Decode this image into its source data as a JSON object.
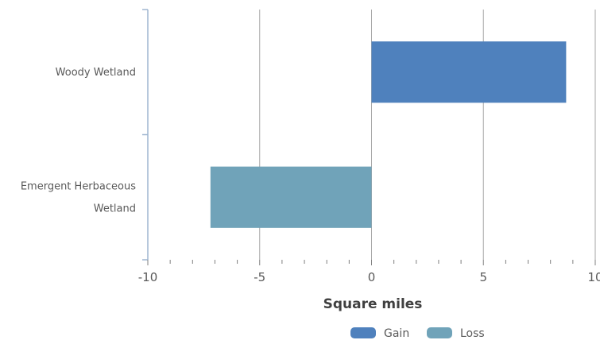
{
  "chart_data": {
    "type": "bar",
    "orientation": "horizontal",
    "categories": [
      "Woody Wetland",
      "Emergent Herbaceous Wetland"
    ],
    "category_label_lines": [
      [
        "Woody Wetland"
      ],
      [
        "Emergent Herbaceous",
        "Wetland"
      ]
    ],
    "series": [
      {
        "name": "Gain",
        "color": "#4f81bd",
        "values": [
          8.7,
          null
        ]
      },
      {
        "name": "Loss",
        "color": "#70a3b9",
        "values": [
          null,
          -7.2
        ]
      }
    ],
    "xlabel": "Square miles",
    "ylabel": "",
    "xlim": [
      -10,
      10
    ],
    "xticks": [
      -10,
      -5,
      0,
      5,
      10
    ],
    "xtick_labels": [
      "-10",
      "-5",
      "0",
      "5",
      "10"
    ],
    "grid": true,
    "legend_position": "bottom-right"
  }
}
